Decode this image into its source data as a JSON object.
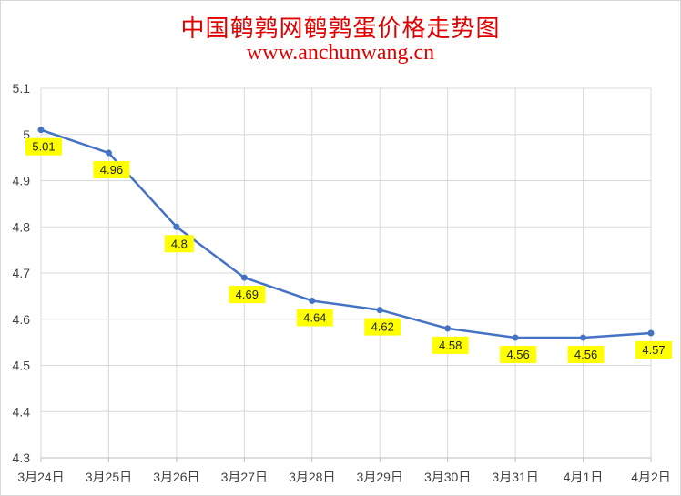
{
  "chart_data": {
    "type": "line",
    "title": "中国鹌鹑网鹌鹑蛋价格走势图",
    "subtitle": "www.anchunwang.cn",
    "xlabel": "",
    "ylabel": "",
    "categories": [
      "3月24日",
      "3月25日",
      "3月26日",
      "3月27日",
      "3月28日",
      "3月29日",
      "3月30日",
      "3月31日",
      "4月1日",
      "4月2日"
    ],
    "series": [
      {
        "values": [
          5.01,
          4.96,
          4.8,
          4.69,
          4.64,
          4.62,
          4.58,
          4.56,
          4.56,
          4.57
        ]
      }
    ],
    "data_labels": [
      "5.01",
      "4.96",
      "4.8",
      "4.69",
      "4.64",
      "4.62",
      "4.58",
      "4.56",
      "4.56",
      "4.57"
    ],
    "ylim": [
      4.3,
      5.1
    ],
    "yticks": [
      "4.3",
      "4.4",
      "4.5",
      "4.6",
      "4.7",
      "4.8",
      "4.9",
      "5",
      "5.1"
    ],
    "grid": true,
    "colors": {
      "title": "#e00000",
      "line": "#4472c4",
      "label_bg": "#ffff00",
      "grid": "#d9d9d9"
    }
  }
}
